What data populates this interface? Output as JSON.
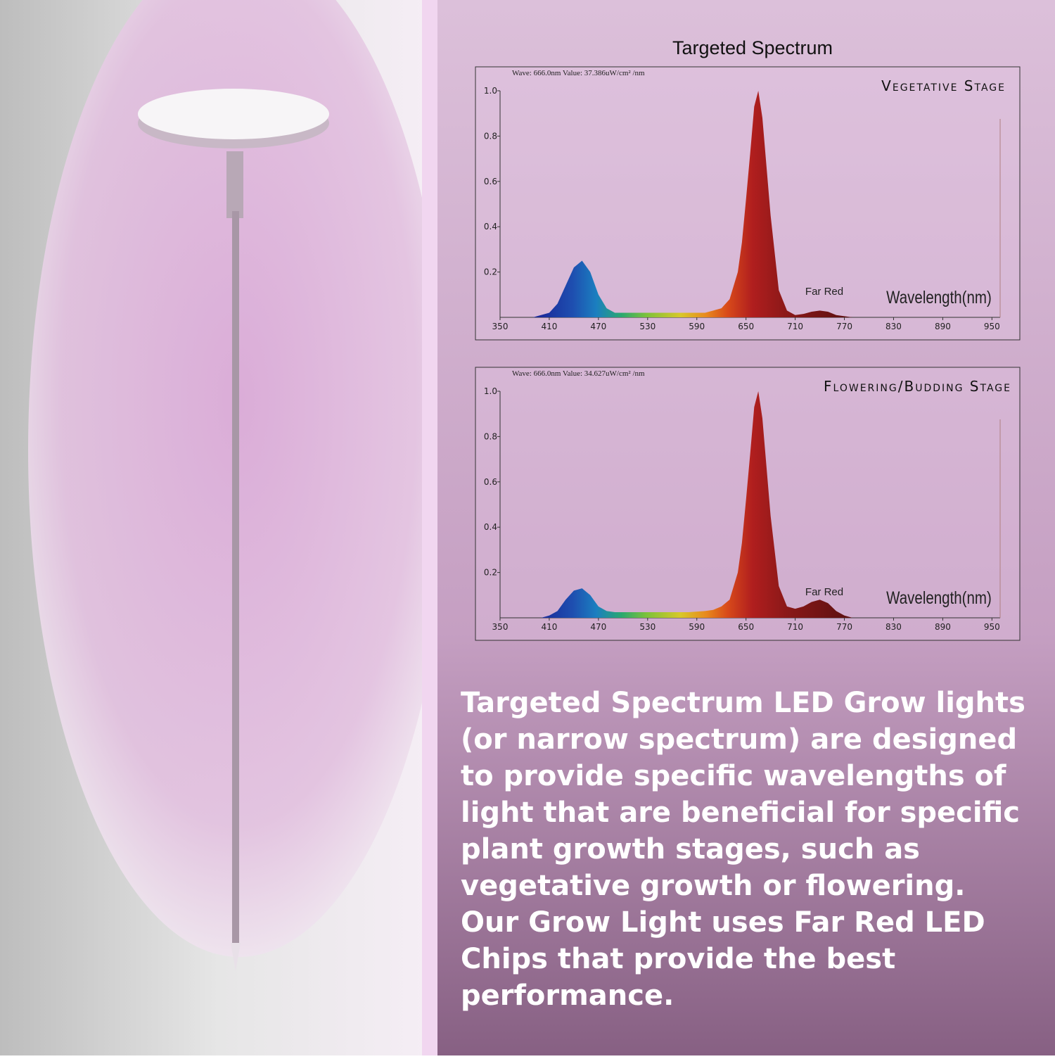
{
  "heading": "Targeted Spectrum",
  "description": [
    "Targeted Spectrum LED Grow lights",
    "(or narrow spectrum) are designed",
    "to provide specific wavelengths of",
    "light that are beneficial for specific",
    "plant growth stages, such as",
    "vegetative growth or flowering.",
    "Our Grow Light uses Far Red LED",
    "Chips that provide the best",
    "performance."
  ],
  "chart_data": [
    {
      "type": "area",
      "title": "Vegetative Stage",
      "subtitle": "Wave: 666.0nm Value: 37.386uW/cm² /nm",
      "annotation": "Far Red",
      "x_label": "Wavelength(nm)",
      "x": [
        380,
        390,
        400,
        410,
        420,
        430,
        440,
        450,
        460,
        470,
        480,
        490,
        500,
        520,
        540,
        560,
        580,
        600,
        610,
        620,
        630,
        640,
        645,
        650,
        655,
        660,
        665,
        670,
        680,
        690,
        700,
        710,
        720,
        730,
        740,
        750,
        760,
        770,
        780,
        800
      ],
      "values": [
        0,
        0,
        0.01,
        0.02,
        0.06,
        0.14,
        0.22,
        0.25,
        0.2,
        0.1,
        0.04,
        0.02,
        0.02,
        0.02,
        0.02,
        0.02,
        0.02,
        0.02,
        0.03,
        0.04,
        0.08,
        0.2,
        0.33,
        0.52,
        0.72,
        0.93,
        1,
        0.88,
        0.45,
        0.12,
        0.03,
        0.01,
        0.015,
        0.025,
        0.03,
        0.025,
        0.01,
        0.005,
        0,
        0
      ],
      "xlim": [
        350,
        960
      ],
      "xticks": [
        350,
        410,
        470,
        530,
        590,
        650,
        710,
        770,
        830,
        890,
        950
      ],
      "ylim": [
        0,
        1
      ],
      "yticks": [
        0.2,
        0.4,
        0.6,
        0.8,
        {
          "value": 1,
          "label": "1.0"
        }
      ]
    },
    {
      "type": "area",
      "title": "Flowering/Budding Stage",
      "subtitle": "Wave: 666.0nm Value: 34.627uW/cm² /nm",
      "annotation": "Far Red",
      "x_label": "Wavelength(nm)",
      "x": [
        380,
        390,
        400,
        410,
        420,
        430,
        440,
        450,
        460,
        470,
        480,
        490,
        500,
        520,
        540,
        560,
        580,
        600,
        610,
        620,
        630,
        640,
        645,
        650,
        655,
        660,
        665,
        670,
        680,
        690,
        700,
        710,
        720,
        730,
        740,
        750,
        760,
        770,
        780,
        800
      ],
      "values": [
        0,
        0,
        0,
        0.01,
        0.03,
        0.08,
        0.12,
        0.13,
        0.1,
        0.05,
        0.03,
        0.025,
        0.025,
        0.025,
        0.025,
        0.025,
        0.025,
        0.03,
        0.035,
        0.05,
        0.08,
        0.2,
        0.33,
        0.52,
        0.72,
        0.93,
        1,
        0.88,
        0.45,
        0.14,
        0.05,
        0.04,
        0.05,
        0.07,
        0.08,
        0.065,
        0.03,
        0.01,
        0,
        0
      ],
      "xlim": [
        350,
        960
      ],
      "xticks": [
        350,
        410,
        470,
        530,
        590,
        650,
        710,
        770,
        830,
        890,
        950
      ],
      "ylim": [
        0,
        1
      ],
      "yticks": [
        0.2,
        0.4,
        0.6,
        0.8,
        {
          "value": 1,
          "label": "1.0"
        }
      ]
    }
  ]
}
